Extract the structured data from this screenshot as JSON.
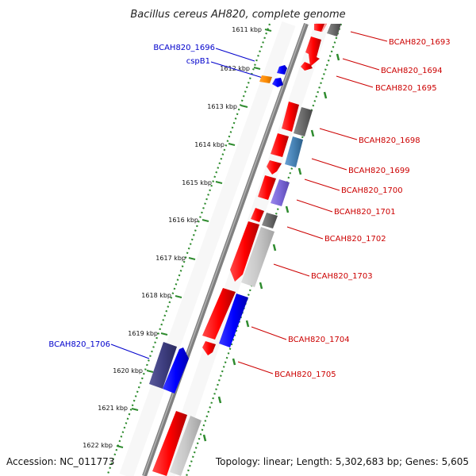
{
  "title": "Bacillus cereus AH820, complete genome",
  "footer": {
    "accession": "Accession: NC_011773",
    "topology": "Topology: linear; Length: 5,302,683 bp; Genes: 5,605"
  },
  "colors": {
    "backbone": "#808080",
    "dotted_track": "#2e8b2e",
    "left_label": "#0000cc",
    "right_label": "#cc0000",
    "forward_gene": "#ff0000",
    "other_gene": "#808080"
  },
  "ruler": [
    {
      "label": "1611 kbp"
    },
    {
      "label": "1612 kbp"
    },
    {
      "label": "1613 kbp"
    },
    {
      "label": "1614 kbp"
    },
    {
      "label": "1615 kbp"
    },
    {
      "label": "1616 kbp"
    },
    {
      "label": "1617 kbp"
    },
    {
      "label": "1618 kbp"
    },
    {
      "label": "1619 kbp"
    },
    {
      "label": "1620 kbp"
    },
    {
      "label": "1621 kbp"
    },
    {
      "label": "1622 kbp"
    }
  ],
  "labels_left": [
    {
      "text": "BCAH820_1696"
    },
    {
      "text": "cspB1"
    },
    {
      "text": "BCAH820_1706"
    }
  ],
  "labels_right": [
    {
      "text": "BCAH820_1693"
    },
    {
      "text": "BCAH820_1694"
    },
    {
      "text": "BCAH820_1695"
    },
    {
      "text": "BCAH820_1698"
    },
    {
      "text": "BCAH820_1699"
    },
    {
      "text": "BCAH820_1700"
    },
    {
      "text": "BCAH820_1701"
    },
    {
      "text": "BCAH820_1702"
    },
    {
      "text": "BCAH820_1703"
    },
    {
      "text": "BCAH820_1704"
    },
    {
      "text": "BCAH820_1705"
    }
  ]
}
